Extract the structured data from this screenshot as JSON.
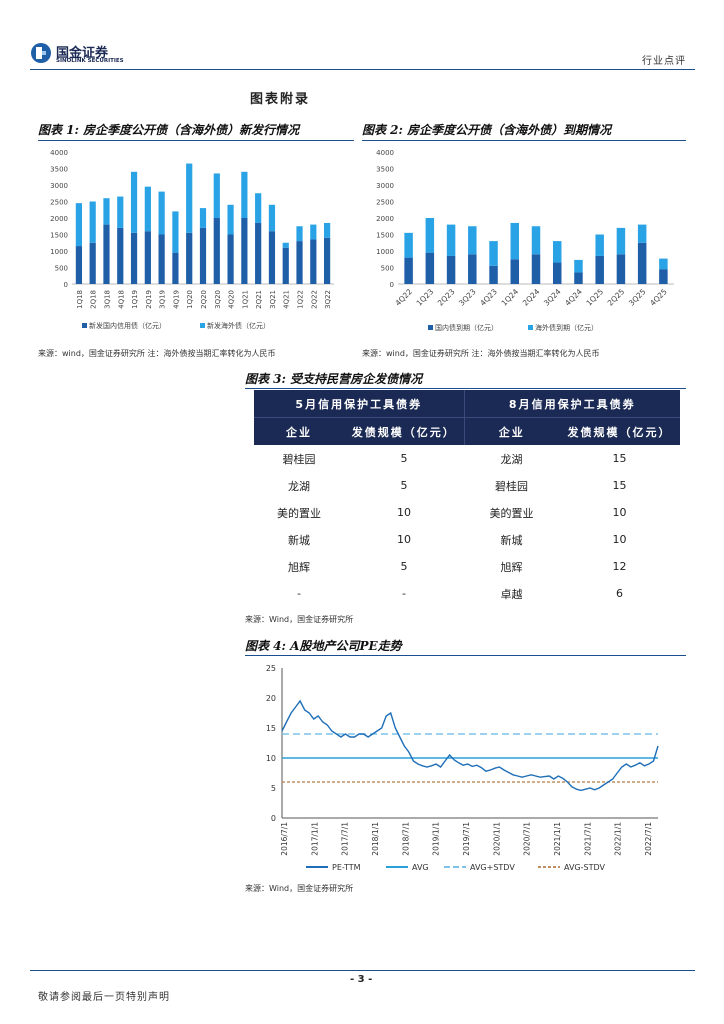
{
  "header": {
    "logo_cn": "国金证券",
    "logo_en": "SINOLINK SECURITIES",
    "right_label": "行业点评"
  },
  "section_title": "图表附录",
  "fig1": {
    "title": "图表 1:  房企季度公开债（含海外债）新发行情况",
    "source": "来源：wind，国金证券研究所 注：海外债按当期汇率转化为人民币"
  },
  "fig2": {
    "title": "图表 2:  房企季度公开债（含海外债）到期情况",
    "source": "来源：wind，国金证券研究所 注：海外债按当期汇率转化为人民币"
  },
  "fig3": {
    "title": "图表 3:  受支持民营房企发债情况",
    "group1": "5月信用保护工具债券",
    "group2": "8月信用保护工具债券",
    "col_company": "企业",
    "col_scale": "发债规模（亿元）",
    "rows": [
      {
        "c1": "碧桂园",
        "v1": "5",
        "c2": "龙湖",
        "v2": "15"
      },
      {
        "c1": "龙湖",
        "v1": "5",
        "c2": "碧桂园",
        "v2": "15"
      },
      {
        "c1": "美的置业",
        "v1": "10",
        "c2": "美的置业",
        "v2": "10"
      },
      {
        "c1": "新城",
        "v1": "10",
        "c2": "新城",
        "v2": "10"
      },
      {
        "c1": "旭辉",
        "v1": "5",
        "c2": "旭辉",
        "v2": "12"
      },
      {
        "c1": "-",
        "v1": "-",
        "c2": "卓越",
        "v2": "6"
      }
    ],
    "source": "来源：Wind，国金证券研究所"
  },
  "fig4": {
    "title": "图表 4:  A股地产公司PE走势",
    "source": "来源：Wind，国金证券研究所"
  },
  "footer": {
    "page": "- 3 -",
    "disclaimer": "敬请参阅最后一页特别声明"
  },
  "colors": {
    "domestic": "#1f5fa8",
    "overseas": "#2aa3e6",
    "navy": "#1b2a55",
    "line": "#1f6fb8",
    "avg": "#2a9fd8",
    "stdv_hi": "#7cc2ea",
    "stdv_lo": "#c09060"
  },
  "chart_data": [
    {
      "type": "bar",
      "stacked": true,
      "id": "fig1",
      "categories": [
        "1Q18",
        "2Q18",
        "3Q18",
        "4Q18",
        "1Q19",
        "2Q19",
        "3Q19",
        "4Q19",
        "1Q20",
        "2Q20",
        "3Q20",
        "4Q20",
        "1Q21",
        "2Q21",
        "3Q21",
        "4Q21",
        "1Q22",
        "2Q22",
        "3Q22"
      ],
      "series": [
        {
          "name": "新发国内信用债（亿元）",
          "values": [
            1150,
            1250,
            1800,
            1700,
            1550,
            1600,
            1500,
            950,
            1550,
            1700,
            2000,
            1500,
            2000,
            1850,
            1600,
            1100,
            1300,
            1350,
            1400
          ]
        },
        {
          "name": "新发海外债（亿元）",
          "values": [
            1300,
            1250,
            800,
            950,
            1850,
            1350,
            1300,
            1250,
            2100,
            600,
            1350,
            900,
            1400,
            900,
            800,
            150,
            450,
            450,
            450
          ]
        }
      ],
      "ylim": [
        0,
        4000
      ],
      "yticks": [
        0,
        500,
        1000,
        1500,
        2000,
        2500,
        3000,
        3500,
        4000
      ],
      "legend": "bottom"
    },
    {
      "type": "bar",
      "stacked": true,
      "id": "fig2",
      "categories": [
        "4Q22",
        "1Q23",
        "2Q23",
        "3Q23",
        "4Q23",
        "1Q24",
        "2Q24",
        "3Q24",
        "4Q24",
        "1Q25",
        "2Q25",
        "3Q25",
        "4Q25"
      ],
      "series": [
        {
          "name": "国内债到期（亿元）",
          "values": [
            800,
            950,
            850,
            900,
            550,
            750,
            900,
            650,
            350,
            850,
            900,
            1250,
            450
          ]
        },
        {
          "name": "海外债到期（亿元）",
          "values": [
            750,
            1050,
            950,
            850,
            750,
            1100,
            850,
            650,
            380,
            650,
            800,
            550,
            320
          ]
        }
      ],
      "ylim": [
        0,
        4000
      ],
      "yticks": [
        0,
        500,
        1000,
        1500,
        2000,
        2500,
        3000,
        3500,
        4000
      ],
      "legend": "bottom"
    },
    {
      "type": "line",
      "id": "fig4",
      "x_ticks": [
        "2016/7/1",
        "2017/1/1",
        "2017/7/1",
        "2018/1/1",
        "2018/7/1",
        "2019/1/1",
        "2019/7/1",
        "2020/1/1",
        "2020/7/1",
        "2021/1/1",
        "2021/7/1",
        "2022/1/1",
        "2022/7/1"
      ],
      "ylim": [
        0,
        25
      ],
      "yticks": [
        0,
        5,
        10,
        15,
        20,
        25
      ],
      "series": [
        {
          "name": "PE-TTM",
          "values": [
            14.5,
            16,
            17.5,
            18.5,
            19.5,
            18,
            17.5,
            16.5,
            17,
            16,
            15.5,
            14.5,
            14,
            13.5,
            14,
            13.5,
            13.5,
            14,
            14,
            13.5,
            14,
            14.5,
            15,
            17,
            17.5,
            15,
            13.5,
            12,
            11,
            9.5,
            9,
            8.7,
            8.5,
            8.7,
            9,
            8.5,
            9.5,
            10.5,
            9.7,
            9.2,
            8.8,
            9,
            8.6,
            8.8,
            8.4,
            7.8,
            8,
            8.3,
            8.5,
            8,
            7.6,
            7.2,
            7,
            6.8,
            7,
            7.2,
            7,
            6.8,
            6.9,
            7,
            6.5,
            7,
            6.6,
            6,
            5.2,
            4.8,
            4.6,
            4.8,
            5,
            4.7,
            5,
            5.5,
            6,
            6.5,
            7.5,
            8.5,
            9,
            8.5,
            8.8,
            9.2,
            8.7,
            9,
            9.5,
            12
          ]
        },
        {
          "name": "AVG",
          "constant": 10
        },
        {
          "name": "AVG+STDV",
          "constant": 14
        },
        {
          "name": "AVG-STDV",
          "constant": 6
        }
      ],
      "legend": "bottom"
    }
  ]
}
